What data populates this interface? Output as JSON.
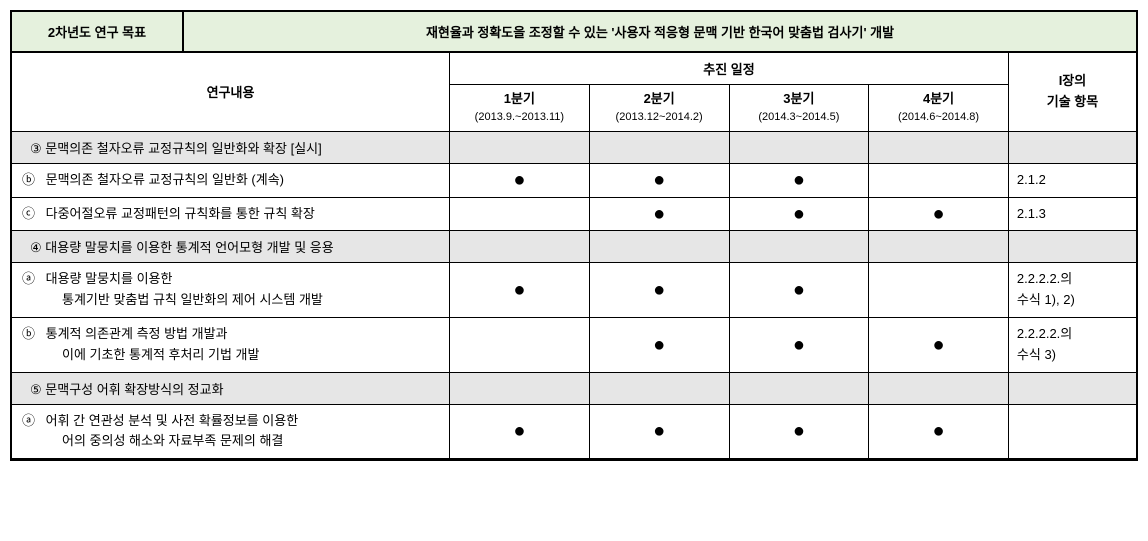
{
  "header": {
    "left": "2차년도 연구 목표",
    "right": "재현율과 정확도을 조정할 수 있는 '사용자 적응형 문맥 기반 한국어 맞춤법 검사기' 개발"
  },
  "columns": {
    "content": "연구내용",
    "schedule": "추진 일정",
    "item": "I장의\n기술 항목",
    "quarters": [
      {
        "label": "1분기",
        "range": "(2013.9.~2013.11)"
      },
      {
        "label": "2분기",
        "range": "(2013.12~2014.2)"
      },
      {
        "label": "3분기",
        "range": "(2014.3~2014.5)"
      },
      {
        "label": "4분기",
        "range": "(2014.6~2014.8)"
      }
    ]
  },
  "rows": [
    {
      "type": "group",
      "marker": "③",
      "text": "문맥의존 철자오류 교정규칙의 일반화와 확장 [실시]"
    },
    {
      "type": "sub",
      "marker": "ⓑ",
      "text": "문맥의존 철자오류 교정규칙의 일반화 (계속)",
      "dots": [
        true,
        true,
        true,
        false
      ],
      "item": "2.1.2"
    },
    {
      "type": "sub",
      "marker": "ⓒ",
      "text": "다중어절오류 교정패턴의 규칙화를 통한 규칙 확장",
      "dots": [
        false,
        true,
        true,
        true
      ],
      "item": "2.1.3"
    },
    {
      "type": "group",
      "marker": "④",
      "text": "대용량 말뭉치를 이용한 통계적 언어모형 개발 및 응용"
    },
    {
      "type": "sub",
      "marker": "ⓐ",
      "text": "대용량 말뭉치를 이용한\n통계기반 맞춤법 규칙 일반화의 제어 시스템 개발",
      "dots": [
        true,
        true,
        true,
        false
      ],
      "item": "2.2.2.2.의\n수식 1), 2)"
    },
    {
      "type": "sub",
      "marker": "ⓑ",
      "text": "통계적 의존관계 측정 방법 개발과\n이에 기초한 통계적 후처리 기법 개발",
      "dots": [
        false,
        true,
        true,
        true
      ],
      "item": "2.2.2.2.의\n수식 3)"
    },
    {
      "type": "group",
      "marker": "⑤",
      "text": "문맥구성 어휘 확장방식의 정교화"
    },
    {
      "type": "sub",
      "marker": "ⓐ",
      "text": "어휘 간 연관성 분석 및 사전 확률정보를 이용한\n어의 중의성 해소와 자료부족 문제의 해결",
      "dots": [
        true,
        true,
        true,
        true
      ],
      "item": ""
    }
  ],
  "dot_glyph": "●",
  "colors": {
    "header_bg": "#e5f1dd",
    "group_bg": "#e6e6e6"
  }
}
